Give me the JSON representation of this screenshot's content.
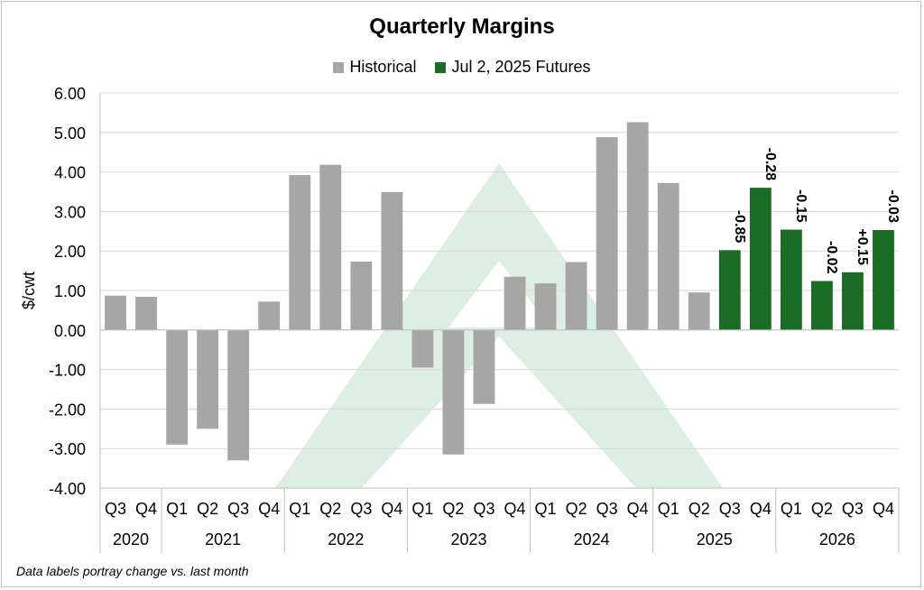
{
  "colors": {
    "historical": "#a6a6a6",
    "futures": "#1a6b24",
    "watermark": "#d9ede1"
  },
  "chart_data": {
    "type": "bar",
    "title": "Quarterly Margins",
    "ylabel": "$/cwt",
    "xlabel": "",
    "ylim": [
      -4,
      6
    ],
    "yticks": [
      "6.00",
      "5.00",
      "4.00",
      "3.00",
      "2.00",
      "1.00",
      "0.00",
      "-1.00",
      "-2.00",
      "-3.00",
      "-4.00"
    ],
    "grid": true,
    "legend_position": "top",
    "series": [
      {
        "name": "Historical",
        "color": "#a6a6a6",
        "values": [
          0.87,
          0.84,
          -2.9,
          -2.5,
          -3.3,
          0.72,
          3.92,
          4.18,
          1.73,
          3.49,
          -0.95,
          -3.15,
          -1.87,
          1.35,
          1.18,
          1.72,
          4.88,
          5.26,
          3.72,
          0.95,
          null,
          null,
          null,
          null,
          null,
          null
        ]
      },
      {
        "name": "Jul 2, 2025 Futures",
        "color": "#1a6b24",
        "values": [
          null,
          null,
          null,
          null,
          null,
          null,
          null,
          null,
          null,
          null,
          null,
          null,
          null,
          null,
          null,
          null,
          null,
          null,
          null,
          null,
          2.02,
          3.6,
          2.54,
          1.24,
          1.46,
          2.53
        ]
      }
    ],
    "categories": [
      "Q3",
      "Q4",
      "Q1",
      "Q2",
      "Q3",
      "Q4",
      "Q1",
      "Q2",
      "Q3",
      "Q4",
      "Q1",
      "Q2",
      "Q3",
      "Q4",
      "Q1",
      "Q2",
      "Q3",
      "Q4",
      "Q1",
      "Q2",
      "Q3",
      "Q4",
      "Q1",
      "Q2",
      "Q3",
      "Q4"
    ],
    "years": [
      {
        "label": "2020",
        "count": 2
      },
      {
        "label": "2021",
        "count": 4
      },
      {
        "label": "2022",
        "count": 4
      },
      {
        "label": "2023",
        "count": 4
      },
      {
        "label": "2024",
        "count": 4
      },
      {
        "label": "2025",
        "count": 4
      },
      {
        "label": "2026",
        "count": 4
      }
    ],
    "data_labels": [
      null,
      null,
      null,
      null,
      null,
      null,
      null,
      null,
      null,
      null,
      null,
      null,
      null,
      null,
      null,
      null,
      null,
      null,
      null,
      null,
      "-0.85",
      "-0.28",
      "-0.15",
      "-0.02",
      "+0.15",
      "-0.03"
    ],
    "annotation": "Data labels portray change vs. last month"
  }
}
